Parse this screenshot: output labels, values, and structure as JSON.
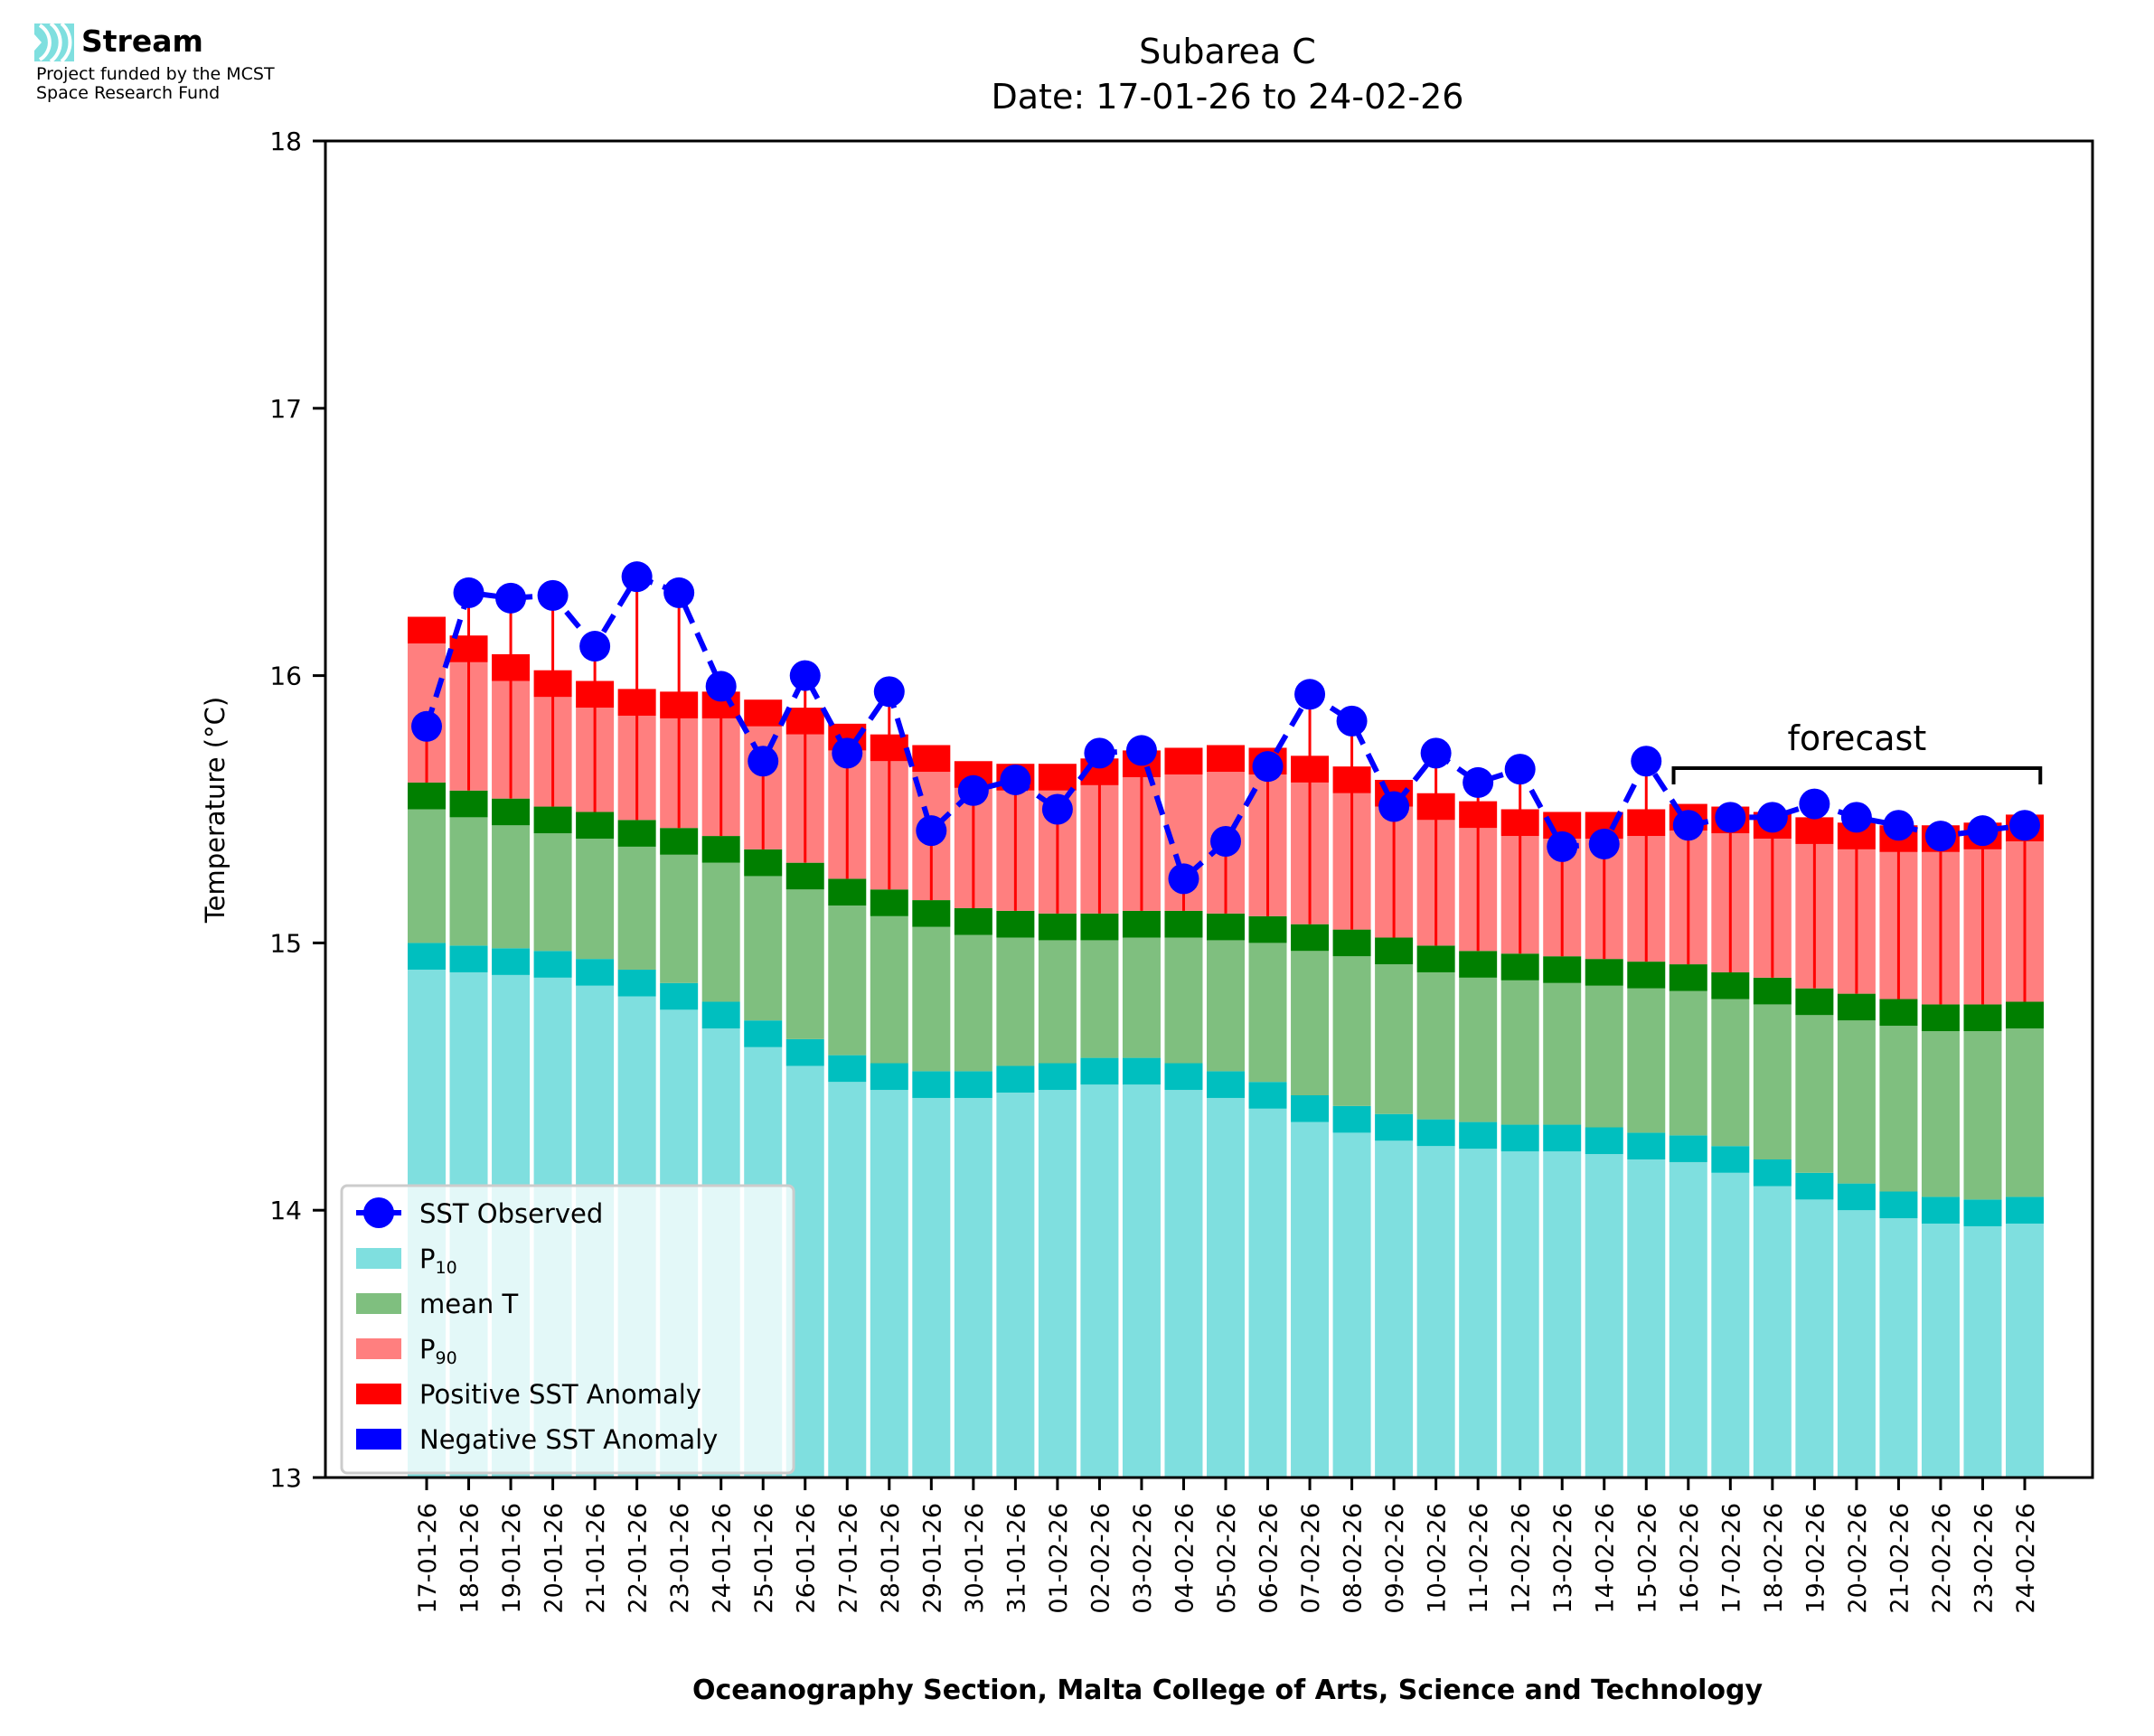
{
  "logo": {
    "name": "Stream",
    "line1": "Project funded by the MCST",
    "line2": "Space Research Fund",
    "icon": "stream-waves-icon",
    "icon_color": "#7fdfdf"
  },
  "chart_data": {
    "type": "bar",
    "title": "Subarea C",
    "subtitle": "Date: 17-01-26 to 24-02-26",
    "xlabel": "Oceanography Section, Malta College of Arts, Science and Technology",
    "ylabel": "Temperature (°C)",
    "ylim": [
      13,
      18
    ],
    "yticks": [
      13,
      14,
      15,
      16,
      17,
      18
    ],
    "band_thickness": 0.1,
    "forecast_label": "forecast",
    "forecast_range": [
      "16-02-26",
      "24-02-26"
    ],
    "legend_position": "lower-left",
    "legend": [
      {
        "label": "SST Observed",
        "type": "line-marker",
        "color": "#0000ff"
      },
      {
        "label": "P",
        "sub": "10",
        "type": "patch",
        "color": "#7fdfdf"
      },
      {
        "label": "mean T",
        "type": "patch",
        "color": "#7fbf7f"
      },
      {
        "label": "P",
        "sub": "90",
        "type": "patch",
        "color": "#ff7f7f"
      },
      {
        "label": "Positive SST Anomaly",
        "type": "patch",
        "color": "#ff0000"
      },
      {
        "label": "Negative SST Anomaly",
        "type": "patch",
        "color": "#0000ff"
      }
    ],
    "colors": {
      "p10": "#7fdfdf",
      "p10_band": "#00bfbf",
      "mean": "#7fbf7f",
      "mean_band": "#007f00",
      "p90": "#ff7f7f",
      "p90_band": "#ff0000",
      "observed": "#0000ff",
      "anomaly_pos": "#ff0000",
      "anomaly_neg": "#0000ff"
    },
    "categories": [
      "17-01-26",
      "18-01-26",
      "19-01-26",
      "20-01-26",
      "21-01-26",
      "22-01-26",
      "23-01-26",
      "24-01-26",
      "25-01-26",
      "26-01-26",
      "27-01-26",
      "28-01-26",
      "29-01-26",
      "30-01-26",
      "31-01-26",
      "01-02-26",
      "02-02-26",
      "03-02-26",
      "04-02-26",
      "05-02-26",
      "06-02-26",
      "07-02-26",
      "08-02-26",
      "09-02-26",
      "10-02-26",
      "11-02-26",
      "12-02-26",
      "13-02-26",
      "14-02-26",
      "15-02-26",
      "16-02-26",
      "17-02-26",
      "18-02-26",
      "19-02-26",
      "20-02-26",
      "21-02-26",
      "22-02-26",
      "23-02-26",
      "24-02-26"
    ],
    "series": [
      {
        "name": "P10",
        "values": [
          14.9,
          14.89,
          14.88,
          14.87,
          14.84,
          14.8,
          14.75,
          14.68,
          14.61,
          14.54,
          14.48,
          14.45,
          14.42,
          14.42,
          14.44,
          14.45,
          14.47,
          14.47,
          14.45,
          14.42,
          14.38,
          14.33,
          14.29,
          14.26,
          14.24,
          14.23,
          14.22,
          14.22,
          14.21,
          14.19,
          14.18,
          14.14,
          14.09,
          14.04,
          14.0,
          13.97,
          13.95,
          13.94,
          13.95
        ]
      },
      {
        "name": "mean T",
        "values": [
          15.5,
          15.47,
          15.44,
          15.41,
          15.39,
          15.36,
          15.33,
          15.3,
          15.25,
          15.2,
          15.14,
          15.1,
          15.06,
          15.03,
          15.02,
          15.01,
          15.01,
          15.02,
          15.02,
          15.01,
          15.0,
          14.97,
          14.95,
          14.92,
          14.89,
          14.87,
          14.86,
          14.85,
          14.84,
          14.83,
          14.82,
          14.79,
          14.77,
          14.73,
          14.71,
          14.69,
          14.67,
          14.67,
          14.68
        ]
      },
      {
        "name": "P90",
        "values": [
          16.12,
          16.05,
          15.98,
          15.92,
          15.88,
          15.85,
          15.84,
          15.84,
          15.81,
          15.78,
          15.72,
          15.68,
          15.64,
          15.58,
          15.57,
          15.57,
          15.59,
          15.62,
          15.63,
          15.64,
          15.63,
          15.6,
          15.56,
          15.51,
          15.46,
          15.43,
          15.4,
          15.39,
          15.39,
          15.4,
          15.42,
          15.41,
          15.39,
          15.37,
          15.35,
          15.34,
          15.34,
          15.35,
          15.38
        ]
      },
      {
        "name": "SST Observed",
        "values": [
          15.81,
          16.31,
          16.29,
          16.3,
          16.11,
          16.37,
          16.31,
          15.96,
          15.68,
          16.0,
          15.71,
          15.94,
          15.42,
          15.57,
          15.61,
          15.5,
          15.71,
          15.72,
          15.24,
          15.38,
          15.66,
          15.93,
          15.83,
          15.51,
          15.71,
          15.6,
          15.65,
          15.36,
          15.37,
          15.68,
          15.44,
          15.47,
          15.47,
          15.52,
          15.47,
          15.44,
          15.4,
          15.42,
          15.44
        ]
      }
    ]
  }
}
